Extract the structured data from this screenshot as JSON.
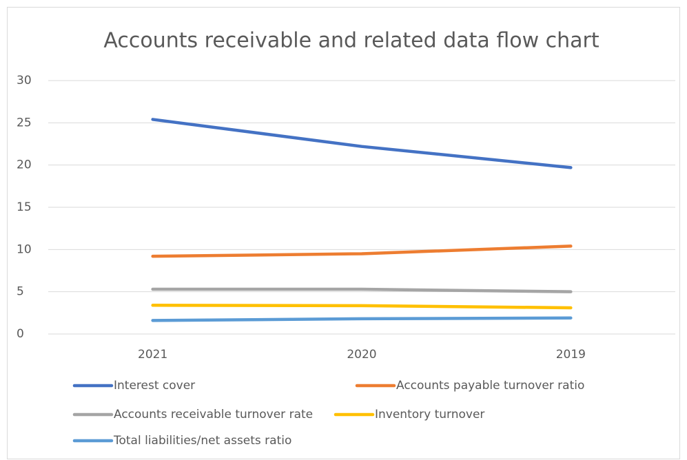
{
  "chart_data": {
    "type": "line",
    "title": "Accounts receivable and related data flow chart",
    "categories": [
      "2021",
      "2020",
      "2019"
    ],
    "series": [
      {
        "name": "Interest cover",
        "color": "#4472c4",
        "values": [
          25.4,
          22.2,
          19.7
        ]
      },
      {
        "name": "Accounts payable turnover ratio",
        "color": "#ed7d31",
        "values": [
          9.2,
          9.5,
          10.4
        ]
      },
      {
        "name": "Accounts receivable turnover rate",
        "color": "#a5a5a5",
        "values": [
          5.3,
          5.3,
          5.0
        ]
      },
      {
        "name": "Inventory turnover",
        "color": "#ffc000",
        "values": [
          3.4,
          3.35,
          3.1
        ]
      },
      {
        "name": "Total liabilities/net assets ratio",
        "color": "#5b9bd5",
        "values": [
          1.6,
          1.8,
          1.9
        ]
      }
    ],
    "ylim": [
      0,
      30
    ],
    "yticks": [
      0,
      5,
      10,
      15,
      20,
      25,
      30
    ],
    "grid": true,
    "legend": "bottom"
  }
}
